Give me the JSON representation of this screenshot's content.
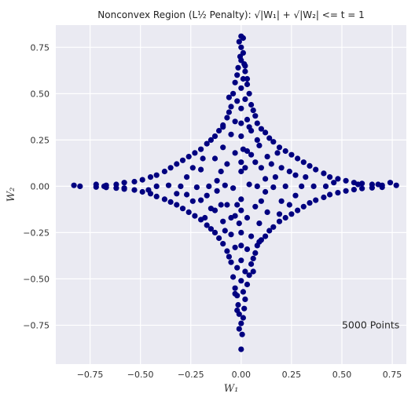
{
  "chart_data": {
    "type": "scatter",
    "title": "Nonconvex Region (L½ Penalty): √|W₁| + √|W₂| <= t = 1",
    "xlabel": "W₁",
    "ylabel": "W₂",
    "xlim": [
      -0.92,
      0.82
    ],
    "ylim": [
      -0.96,
      0.87
    ],
    "xticks": [
      -0.75,
      -0.5,
      -0.25,
      0.0,
      0.25,
      0.5,
      0.75
    ],
    "yticks": [
      -0.75,
      -0.5,
      -0.25,
      0.0,
      0.25,
      0.5,
      0.75
    ],
    "xtick_labels": [
      "−0.75",
      "−0.50",
      "−0.25",
      "0.00",
      "0.25",
      "0.50",
      "0.75"
    ],
    "ytick_labels": [
      "−0.75",
      "−0.50",
      "−0.25",
      "0.00",
      "0.25",
      "0.50",
      "0.75"
    ],
    "grid": true,
    "annotation": {
      "text": "5000 Points",
      "x": 0.5,
      "y": -0.75
    },
    "series": [
      {
        "color": "#000080",
        "points": [
          [
            0.0,
            0.81
          ],
          [
            0.01,
            0.8
          ],
          [
            -0.01,
            0.78
          ],
          [
            0.0,
            0.75
          ],
          [
            0.01,
            0.72
          ],
          [
            -0.005,
            0.7
          ],
          [
            0.0,
            0.68
          ],
          [
            0.015,
            0.66
          ],
          [
            -0.015,
            0.64
          ],
          [
            0.02,
            0.62
          ],
          [
            -0.02,
            0.6
          ],
          [
            0.01,
            0.58
          ],
          [
            -0.03,
            0.56
          ],
          [
            0.03,
            0.55
          ],
          [
            0.0,
            0.53
          ],
          [
            -0.04,
            0.5
          ],
          [
            0.04,
            0.5
          ],
          [
            0.02,
            0.47
          ],
          [
            -0.02,
            0.46
          ],
          [
            0.05,
            0.44
          ],
          [
            -0.05,
            0.43
          ],
          [
            0.06,
            0.41
          ],
          [
            -0.06,
            0.4
          ],
          [
            0.0,
            0.42
          ],
          [
            0.07,
            0.38
          ],
          [
            -0.07,
            0.37
          ],
          [
            0.03,
            0.36
          ],
          [
            -0.03,
            0.35
          ],
          [
            0.08,
            0.34
          ],
          [
            -0.09,
            0.33
          ],
          [
            0.1,
            0.31
          ],
          [
            -0.11,
            0.3
          ],
          [
            0.05,
            0.3
          ],
          [
            -0.05,
            0.28
          ],
          [
            0.12,
            0.29
          ],
          [
            -0.13,
            0.27
          ],
          [
            0.14,
            0.26
          ],
          [
            -0.15,
            0.25
          ],
          [
            0.0,
            0.27
          ],
          [
            0.16,
            0.24
          ],
          [
            -0.17,
            0.23
          ],
          [
            0.09,
            0.22
          ],
          [
            -0.09,
            0.21
          ],
          [
            0.19,
            0.21
          ],
          [
            -0.2,
            0.2
          ],
          [
            0.22,
            0.19
          ],
          [
            -0.23,
            0.18
          ],
          [
            0.03,
            0.19
          ],
          [
            -0.03,
            0.18
          ],
          [
            0.25,
            0.17
          ],
          [
            -0.26,
            0.16
          ],
          [
            0.13,
            0.16
          ],
          [
            -0.13,
            0.15
          ],
          [
            0.28,
            0.15
          ],
          [
            -0.29,
            0.14
          ],
          [
            0.31,
            0.13
          ],
          [
            -0.32,
            0.12
          ],
          [
            0.07,
            0.13
          ],
          [
            -0.07,
            0.12
          ],
          [
            0.34,
            0.11
          ],
          [
            -0.35,
            0.1
          ],
          [
            0.2,
            0.1
          ],
          [
            -0.2,
            0.09
          ],
          [
            0.37,
            0.09
          ],
          [
            -0.38,
            0.08
          ],
          [
            0.41,
            0.07
          ],
          [
            -0.42,
            0.06
          ],
          [
            0.0,
            0.08
          ],
          [
            0.44,
            0.05
          ],
          [
            -0.45,
            0.05
          ],
          [
            0.27,
            0.06
          ],
          [
            -0.27,
            0.05
          ],
          [
            0.48,
            0.04
          ],
          [
            -0.49,
            0.035
          ],
          [
            0.52,
            0.03
          ],
          [
            -0.53,
            0.025
          ],
          [
            0.12,
            0.04
          ],
          [
            -0.12,
            0.03
          ],
          [
            0.56,
            0.02
          ],
          [
            -0.58,
            0.02
          ],
          [
            0.6,
            0.015
          ],
          [
            -0.62,
            0.01
          ],
          [
            0.65,
            0.01
          ],
          [
            -0.67,
            0.005
          ],
          [
            0.7,
            0.005
          ],
          [
            -0.72,
            0.01
          ],
          [
            0.77,
            0.005
          ],
          [
            -0.83,
            0.005
          ],
          [
            -0.8,
            0.0
          ],
          [
            0.74,
            0.02
          ],
          [
            0.0,
            -0.88
          ],
          [
            0.005,
            -0.8
          ],
          [
            -0.01,
            -0.77
          ],
          [
            0.0,
            -0.74
          ],
          [
            0.01,
            -0.71
          ],
          [
            -0.01,
            -0.69
          ],
          [
            0.015,
            -0.66
          ],
          [
            -0.015,
            -0.64
          ],
          [
            0.02,
            -0.61
          ],
          [
            -0.02,
            -0.59
          ],
          [
            0.01,
            -0.57
          ],
          [
            -0.03,
            -0.55
          ],
          [
            0.03,
            -0.53
          ],
          [
            0.0,
            -0.51
          ],
          [
            -0.04,
            -0.49
          ],
          [
            0.04,
            -0.48
          ],
          [
            0.02,
            -0.46
          ],
          [
            -0.02,
            -0.44
          ],
          [
            0.05,
            -0.42
          ],
          [
            -0.05,
            -0.41
          ],
          [
            0.06,
            -0.39
          ],
          [
            -0.06,
            -0.38
          ],
          [
            0.0,
            -0.4
          ],
          [
            0.07,
            -0.36
          ],
          [
            -0.07,
            -0.35
          ],
          [
            0.03,
            -0.34
          ],
          [
            -0.03,
            -0.33
          ],
          [
            0.08,
            -0.32
          ],
          [
            -0.09,
            -0.31
          ],
          [
            0.1,
            -0.29
          ],
          [
            -0.11,
            -0.28
          ],
          [
            0.05,
            -0.27
          ],
          [
            -0.05,
            -0.26
          ],
          [
            0.12,
            -0.27
          ],
          [
            -0.13,
            -0.25
          ],
          [
            0.14,
            -0.24
          ],
          [
            -0.15,
            -0.23
          ],
          [
            0.0,
            -0.25
          ],
          [
            0.16,
            -0.22
          ],
          [
            -0.17,
            -0.21
          ],
          [
            0.09,
            -0.2
          ],
          [
            -0.09,
            -0.19
          ],
          [
            0.19,
            -0.19
          ],
          [
            -0.2,
            -0.18
          ],
          [
            0.22,
            -0.17
          ],
          [
            -0.23,
            -0.16
          ],
          [
            0.03,
            -0.17
          ],
          [
            -0.03,
            -0.16
          ],
          [
            0.25,
            -0.15
          ],
          [
            -0.26,
            -0.14
          ],
          [
            0.13,
            -0.14
          ],
          [
            -0.13,
            -0.13
          ],
          [
            0.28,
            -0.13
          ],
          [
            -0.29,
            -0.12
          ],
          [
            0.31,
            -0.11
          ],
          [
            -0.32,
            -0.1
          ],
          [
            0.07,
            -0.11
          ],
          [
            -0.07,
            -0.1
          ],
          [
            0.34,
            -0.09
          ],
          [
            -0.35,
            -0.085
          ],
          [
            0.2,
            -0.08
          ],
          [
            -0.2,
            -0.075
          ],
          [
            0.37,
            -0.075
          ],
          [
            -0.38,
            -0.07
          ],
          [
            0.41,
            -0.06
          ],
          [
            -0.42,
            -0.055
          ],
          [
            0.0,
            -0.07
          ],
          [
            0.44,
            -0.045
          ],
          [
            -0.45,
            -0.04
          ],
          [
            0.27,
            -0.05
          ],
          [
            -0.27,
            -0.045
          ],
          [
            0.48,
            -0.035
          ],
          [
            -0.49,
            -0.03
          ],
          [
            0.52,
            -0.025
          ],
          [
            -0.53,
            -0.02
          ],
          [
            0.12,
            -0.03
          ],
          [
            -0.12,
            -0.025
          ],
          [
            0.56,
            -0.018
          ],
          [
            -0.58,
            -0.015
          ],
          [
            0.6,
            -0.012
          ],
          [
            -0.62,
            -0.01
          ],
          [
            0.65,
            -0.008
          ],
          [
            -0.67,
            -0.006
          ],
          [
            0.7,
            -0.005
          ],
          [
            -0.72,
            -0.004
          ],
          [
            0.04,
            0.01
          ],
          [
            -0.04,
            -0.01
          ],
          [
            0.08,
            0.0
          ],
          [
            -0.08,
            0.005
          ],
          [
            0.16,
            -0.005
          ],
          [
            -0.16,
            0.0
          ],
          [
            0.22,
            0.0
          ],
          [
            -0.22,
            -0.005
          ],
          [
            0.3,
            0.0
          ],
          [
            -0.3,
            0.0
          ],
          [
            0.36,
            0.0
          ],
          [
            -0.36,
            0.005
          ],
          [
            0.42,
            0.0
          ],
          [
            -0.42,
            0.0
          ],
          [
            0.0,
            0.13
          ],
          [
            0.0,
            -0.13
          ],
          [
            0.01,
            0.2
          ],
          [
            -0.01,
            -0.2
          ],
          [
            0.0,
            0.34
          ],
          [
            0.0,
            -0.32
          ],
          [
            0.02,
            0.1
          ],
          [
            -0.02,
            -0.1
          ],
          [
            0.1,
            0.1
          ],
          [
            -0.1,
            -0.1
          ],
          [
            0.1,
            -0.08
          ],
          [
            -0.1,
            0.08
          ],
          [
            0.17,
            0.05
          ],
          [
            -0.17,
            -0.05
          ],
          [
            0.05,
            0.17
          ],
          [
            -0.05,
            -0.17
          ],
          [
            0.15,
            0.12
          ],
          [
            -0.15,
            -0.12
          ],
          [
            0.24,
            0.08
          ],
          [
            -0.24,
            -0.08
          ],
          [
            0.24,
            -0.1
          ],
          [
            -0.24,
            0.1
          ],
          [
            0.08,
            0.25
          ],
          [
            -0.08,
            -0.24
          ],
          [
            0.09,
            -0.3
          ],
          [
            -0.09,
            0.32
          ],
          [
            0.32,
            0.05
          ],
          [
            -0.32,
            -0.04
          ],
          [
            0.04,
            0.32
          ],
          [
            0.06,
            -0.46
          ],
          [
            -0.06,
            0.48
          ],
          [
            0.46,
            0.02
          ],
          [
            -0.46,
            -0.02
          ],
          [
            0.03,
            0.58
          ],
          [
            -0.03,
            -0.58
          ],
          [
            0.58,
            0.01
          ],
          [
            -0.58,
            -0.01
          ],
          [
            0.18,
            0.18
          ],
          [
            -0.18,
            -0.17
          ],
          [
            0.19,
            -0.15
          ],
          [
            -0.19,
            0.15
          ],
          [
            0.02,
            0.65
          ],
          [
            -0.02,
            -0.67
          ],
          [
            0.68,
            0.01
          ],
          [
            -0.68,
            0.0
          ]
        ]
      }
    ]
  }
}
